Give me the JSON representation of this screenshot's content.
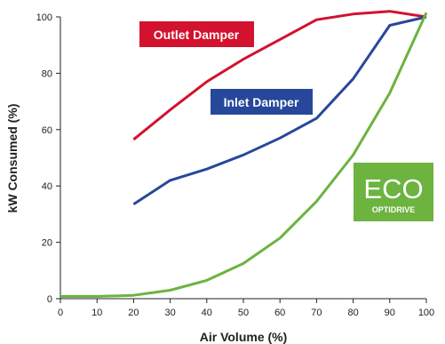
{
  "chart_data": {
    "type": "line",
    "title": "",
    "xlabel": "Air Volume (%)",
    "ylabel": "kW Consumed (%)",
    "xlim": [
      0,
      100
    ],
    "ylim": [
      0,
      100
    ],
    "x_ticks": [
      0,
      10,
      20,
      30,
      40,
      50,
      60,
      70,
      80,
      90,
      100
    ],
    "y_ticks": [
      0,
      20,
      40,
      60,
      80,
      100
    ],
    "grid": false,
    "legend": "inline labels",
    "series": [
      {
        "name": "Outlet Damper",
        "color": "#d2122e",
        "x": [
          20,
          30,
          40,
          50,
          60,
          70,
          80,
          90,
          100
        ],
        "y": [
          56.5,
          67,
          77,
          85,
          92,
          99,
          101,
          102,
          100
        ]
      },
      {
        "name": "Inlet Damper",
        "color": "#27489a",
        "x": [
          20,
          30,
          40,
          50,
          60,
          70,
          80,
          90,
          100
        ],
        "y": [
          33.5,
          42,
          46,
          51,
          57,
          64,
          78,
          97,
          100
        ]
      },
      {
        "name": "",
        "color": "#6cb33f",
        "x": [
          0,
          10,
          20,
          30,
          40,
          50,
          60,
          70,
          80,
          90,
          100
        ],
        "y": [
          0.8,
          0.8,
          1.2,
          3,
          6.5,
          12.5,
          21.5,
          34.5,
          51,
          73,
          101.5
        ]
      }
    ],
    "labels": [
      {
        "text": "Outlet Damper",
        "color": "#d2122e",
        "icon": ""
      },
      {
        "text": "Inlet Damper",
        "color": "#27489a",
        "icon": ""
      },
      {
        "text": "ECO OPTIDRIVE",
        "color": "#6cb33f",
        "icon": "eco-optidrive-logo"
      }
    ]
  }
}
